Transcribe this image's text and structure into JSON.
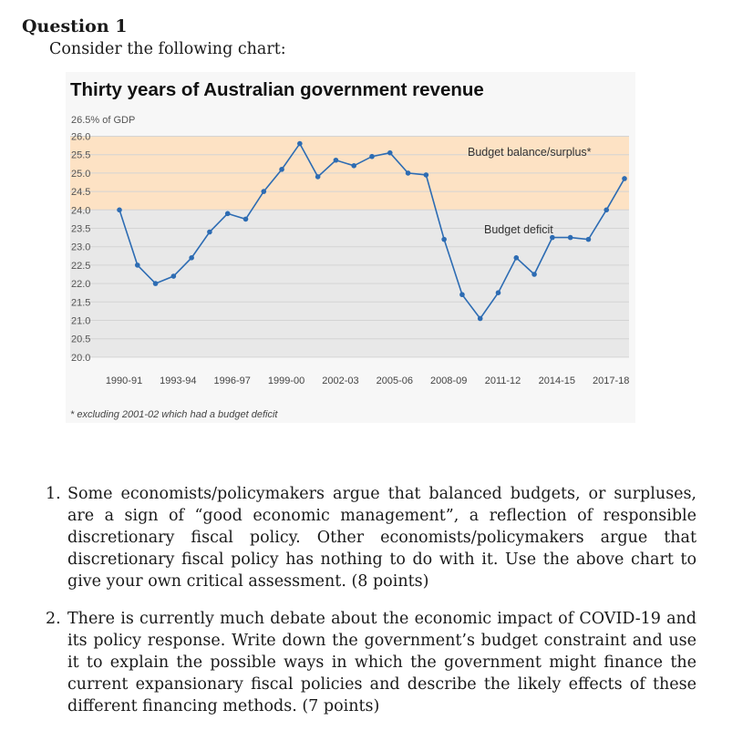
{
  "question": {
    "title": "Question 1",
    "intro": "Consider the following chart:"
  },
  "chart_data": {
    "type": "line",
    "title": "Thirty years of Australian government revenue",
    "ylabel": "26.5% of GDP",
    "ylim": [
      20.0,
      26.5
    ],
    "yticks": [
      "26.0",
      "25.5",
      "25.0",
      "24.5",
      "24.0",
      "23.5",
      "23.0",
      "22.5",
      "22.0",
      "21.5",
      "21.0",
      "20.5",
      "20.0"
    ],
    "xtick_labels": [
      "1990-91",
      "1993-94",
      "1996-97",
      "1999-00",
      "2002-03",
      "2005-06",
      "2008-09",
      "2011-12",
      "2014-15",
      "2017-18"
    ],
    "x": [
      "1990-91",
      "1991-92",
      "1992-93",
      "1993-94",
      "1994-95",
      "1995-96",
      "1996-97",
      "1997-98",
      "1998-99",
      "1999-00",
      "2000-01",
      "2001-02",
      "2002-03",
      "2003-04",
      "2004-05",
      "2005-06",
      "2006-07",
      "2007-08",
      "2008-09",
      "2009-10",
      "2010-11",
      "2011-12",
      "2012-13",
      "2013-14",
      "2014-15",
      "2015-16",
      "2016-17",
      "2017-18",
      "2018-19"
    ],
    "series": [
      {
        "values": [
          24.0,
          22.5,
          22.0,
          22.2,
          22.7,
          23.4,
          23.9,
          23.75,
          24.5,
          25.1,
          25.8,
          24.9,
          25.35,
          25.2,
          25.45,
          25.55,
          25.0,
          24.95,
          23.2,
          21.7,
          21.05,
          21.75,
          22.7,
          22.25,
          23.25,
          23.25,
          23.2,
          24.0,
          24.85
        ],
        "color": "#2d6cb3"
      }
    ],
    "bands": [
      {
        "label": "Budget balance/surplus*",
        "from": 24.0,
        "to": 26.0,
        "color": "#fde2c4"
      },
      {
        "label": "Budget deficit",
        "from": 20.0,
        "to": 24.0,
        "color": "#e8e8e8"
      }
    ],
    "footnote": "* excluding 2001-02 which had a budget deficit",
    "grid": true,
    "legend": "none"
  },
  "questions": [
    {
      "number": "1.",
      "text": "Some economists/policymakers argue that balanced budgets, or surpluses, are a sign of “good economic management”, a reflection of responsible discretionary fiscal policy. Other economists/policymakers argue that discretionary fiscal policy has nothing to do with it. Use the above chart to give your own critical assessment. (8 points)"
    },
    {
      "number": "2.",
      "text": "There is currently much debate about the economic impact of COVID-19 and its policy response. Write down the government’s budget constraint and use it to explain the possible ways in which the government might finance the current expansionary fiscal policies and describe the likely effects of these different financing methods. (7 points)"
    }
  ]
}
